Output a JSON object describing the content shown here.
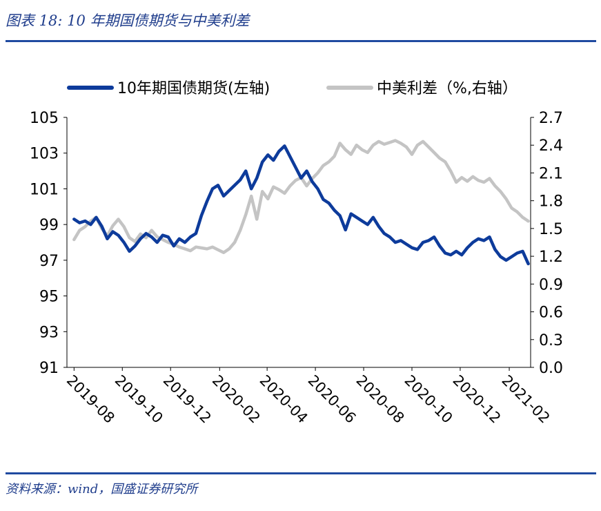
{
  "figure": {
    "title": "图表 18:  10 年期国债期货与中美利差",
    "source": "资料来源：wind，国盛证券研究所"
  },
  "chart_data": {
    "type": "line",
    "legend_position": "top",
    "grid": false,
    "series": [
      {
        "name": "10年期国债期货(左轴)",
        "axis": "left",
        "color": "#0d3b9b",
        "points": [
          [
            "2019-08-01",
            99.3
          ],
          [
            "2019-08-08",
            99.1
          ],
          [
            "2019-08-15",
            99.2
          ],
          [
            "2019-08-22",
            99.0
          ],
          [
            "2019-08-29",
            99.4
          ],
          [
            "2019-09-05",
            98.9
          ],
          [
            "2019-09-12",
            98.2
          ],
          [
            "2019-09-19",
            98.6
          ],
          [
            "2019-09-26",
            98.4
          ],
          [
            "2019-10-03",
            98.0
          ],
          [
            "2019-10-10",
            97.5
          ],
          [
            "2019-10-17",
            97.8
          ],
          [
            "2019-10-24",
            98.2
          ],
          [
            "2019-10-31",
            98.5
          ],
          [
            "2019-11-07",
            98.3
          ],
          [
            "2019-11-14",
            98.0
          ],
          [
            "2019-11-21",
            98.4
          ],
          [
            "2019-11-28",
            98.3
          ],
          [
            "2019-12-05",
            97.8
          ],
          [
            "2019-12-12",
            98.2
          ],
          [
            "2019-12-19",
            98.0
          ],
          [
            "2019-12-26",
            98.3
          ],
          [
            "2020-01-02",
            98.5
          ],
          [
            "2020-01-09",
            99.5
          ],
          [
            "2020-01-16",
            100.3
          ],
          [
            "2020-01-23",
            101.0
          ],
          [
            "2020-01-30",
            101.2
          ],
          [
            "2020-02-06",
            100.6
          ],
          [
            "2020-02-13",
            100.9
          ],
          [
            "2020-02-20",
            101.2
          ],
          [
            "2020-02-27",
            101.5
          ],
          [
            "2020-03-05",
            102.0
          ],
          [
            "2020-03-12",
            101.0
          ],
          [
            "2020-03-19",
            101.6
          ],
          [
            "2020-03-26",
            102.5
          ],
          [
            "2020-04-02",
            102.9
          ],
          [
            "2020-04-09",
            102.6
          ],
          [
            "2020-04-16",
            103.1
          ],
          [
            "2020-04-23",
            103.4
          ],
          [
            "2020-04-30",
            102.8
          ],
          [
            "2020-05-07",
            102.2
          ],
          [
            "2020-05-14",
            101.6
          ],
          [
            "2020-05-21",
            102.0
          ],
          [
            "2020-05-28",
            101.4
          ],
          [
            "2020-06-04",
            101.0
          ],
          [
            "2020-06-11",
            100.4
          ],
          [
            "2020-06-18",
            100.2
          ],
          [
            "2020-06-25",
            99.8
          ],
          [
            "2020-07-02",
            99.5
          ],
          [
            "2020-07-09",
            98.7
          ],
          [
            "2020-07-16",
            99.6
          ],
          [
            "2020-07-23",
            99.4
          ],
          [
            "2020-07-30",
            99.2
          ],
          [
            "2020-08-06",
            99.0
          ],
          [
            "2020-08-13",
            99.4
          ],
          [
            "2020-08-20",
            98.9
          ],
          [
            "2020-08-27",
            98.5
          ],
          [
            "2020-09-03",
            98.3
          ],
          [
            "2020-09-10",
            98.0
          ],
          [
            "2020-09-17",
            98.1
          ],
          [
            "2020-09-24",
            97.9
          ],
          [
            "2020-10-01",
            97.7
          ],
          [
            "2020-10-08",
            97.6
          ],
          [
            "2020-10-15",
            98.0
          ],
          [
            "2020-10-22",
            98.1
          ],
          [
            "2020-10-29",
            98.3
          ],
          [
            "2020-11-05",
            97.8
          ],
          [
            "2020-11-12",
            97.4
          ],
          [
            "2020-11-19",
            97.3
          ],
          [
            "2020-11-26",
            97.5
          ],
          [
            "2020-12-03",
            97.3
          ],
          [
            "2020-12-10",
            97.7
          ],
          [
            "2020-12-17",
            98.0
          ],
          [
            "2020-12-24",
            98.2
          ],
          [
            "2020-12-31",
            98.1
          ],
          [
            "2021-01-07",
            98.3
          ],
          [
            "2021-01-14",
            97.6
          ],
          [
            "2021-01-21",
            97.2
          ],
          [
            "2021-01-28",
            97.0
          ],
          [
            "2021-02-04",
            97.2
          ],
          [
            "2021-02-11",
            97.4
          ],
          [
            "2021-02-18",
            97.5
          ],
          [
            "2021-02-25",
            96.8
          ]
        ]
      },
      {
        "name": "中美利差（%,右轴）",
        "axis": "right",
        "color": "#c4c4c4",
        "points": [
          [
            "2019-08-01",
            1.38
          ],
          [
            "2019-08-08",
            1.48
          ],
          [
            "2019-08-15",
            1.52
          ],
          [
            "2019-08-22",
            1.58
          ],
          [
            "2019-08-29",
            1.62
          ],
          [
            "2019-09-05",
            1.5
          ],
          [
            "2019-09-12",
            1.42
          ],
          [
            "2019-09-19",
            1.53
          ],
          [
            "2019-09-26",
            1.6
          ],
          [
            "2019-10-03",
            1.52
          ],
          [
            "2019-10-10",
            1.4
          ],
          [
            "2019-10-17",
            1.36
          ],
          [
            "2019-10-24",
            1.44
          ],
          [
            "2019-10-31",
            1.4
          ],
          [
            "2019-11-07",
            1.48
          ],
          [
            "2019-11-14",
            1.41
          ],
          [
            "2019-11-21",
            1.38
          ],
          [
            "2019-11-28",
            1.35
          ],
          [
            "2019-12-05",
            1.33
          ],
          [
            "2019-12-12",
            1.3
          ],
          [
            "2019-12-19",
            1.28
          ],
          [
            "2019-12-26",
            1.26
          ],
          [
            "2020-01-02",
            1.3
          ],
          [
            "2020-01-09",
            1.29
          ],
          [
            "2020-01-16",
            1.28
          ],
          [
            "2020-01-23",
            1.3
          ],
          [
            "2020-01-30",
            1.27
          ],
          [
            "2020-02-06",
            1.24
          ],
          [
            "2020-02-13",
            1.28
          ],
          [
            "2020-02-20",
            1.35
          ],
          [
            "2020-02-27",
            1.48
          ],
          [
            "2020-03-05",
            1.65
          ],
          [
            "2020-03-12",
            1.85
          ],
          [
            "2020-03-19",
            1.6
          ],
          [
            "2020-03-26",
            1.9
          ],
          [
            "2020-04-02",
            1.82
          ],
          [
            "2020-04-09",
            1.95
          ],
          [
            "2020-04-16",
            1.92
          ],
          [
            "2020-04-23",
            1.88
          ],
          [
            "2020-04-30",
            1.96
          ],
          [
            "2020-05-07",
            2.02
          ],
          [
            "2020-05-14",
            2.05
          ],
          [
            "2020-05-21",
            1.96
          ],
          [
            "2020-05-28",
            2.04
          ],
          [
            "2020-06-04",
            2.1
          ],
          [
            "2020-06-11",
            2.18
          ],
          [
            "2020-06-18",
            2.22
          ],
          [
            "2020-06-25",
            2.28
          ],
          [
            "2020-07-02",
            2.42
          ],
          [
            "2020-07-09",
            2.35
          ],
          [
            "2020-07-16",
            2.3
          ],
          [
            "2020-07-23",
            2.4
          ],
          [
            "2020-07-30",
            2.35
          ],
          [
            "2020-08-06",
            2.32
          ],
          [
            "2020-08-13",
            2.4
          ],
          [
            "2020-08-20",
            2.44
          ],
          [
            "2020-08-27",
            2.41
          ],
          [
            "2020-09-03",
            2.43
          ],
          [
            "2020-09-10",
            2.45
          ],
          [
            "2020-09-17",
            2.42
          ],
          [
            "2020-09-24",
            2.38
          ],
          [
            "2020-10-01",
            2.3
          ],
          [
            "2020-10-08",
            2.4
          ],
          [
            "2020-10-15",
            2.44
          ],
          [
            "2020-10-22",
            2.38
          ],
          [
            "2020-10-29",
            2.32
          ],
          [
            "2020-11-05",
            2.26
          ],
          [
            "2020-11-12",
            2.22
          ],
          [
            "2020-11-19",
            2.12
          ],
          [
            "2020-11-26",
            2.0
          ],
          [
            "2020-12-03",
            2.05
          ],
          [
            "2020-12-10",
            2.01
          ],
          [
            "2020-12-17",
            2.06
          ],
          [
            "2020-12-24",
            2.02
          ],
          [
            "2020-12-31",
            2.0
          ],
          [
            "2021-01-07",
            2.04
          ],
          [
            "2021-01-14",
            1.96
          ],
          [
            "2021-01-21",
            1.9
          ],
          [
            "2021-01-28",
            1.82
          ],
          [
            "2021-02-04",
            1.72
          ],
          [
            "2021-02-11",
            1.68
          ],
          [
            "2021-02-18",
            1.62
          ],
          [
            "2021-02-25",
            1.58
          ]
        ]
      }
    ],
    "y_left": {
      "min": 91,
      "max": 105,
      "ticks": [
        "105",
        "103",
        "101",
        "99",
        "97",
        "95",
        "93",
        "91"
      ]
    },
    "y_right": {
      "min": 0.0,
      "max": 2.7,
      "ticks": [
        "2.7",
        "2.4",
        "2.1",
        "1.8",
        "1.5",
        "1.2",
        "0.9",
        "0.6",
        "0.3",
        "0.0"
      ]
    },
    "x": {
      "min": "2019-07-23",
      "max": "2021-02-28",
      "ticks": [
        "2019-08",
        "2019-10",
        "2019-12",
        "2020-02",
        "2020-04",
        "2020-06",
        "2020-08",
        "2020-10",
        "2020-12",
        "2021-02"
      ]
    }
  }
}
